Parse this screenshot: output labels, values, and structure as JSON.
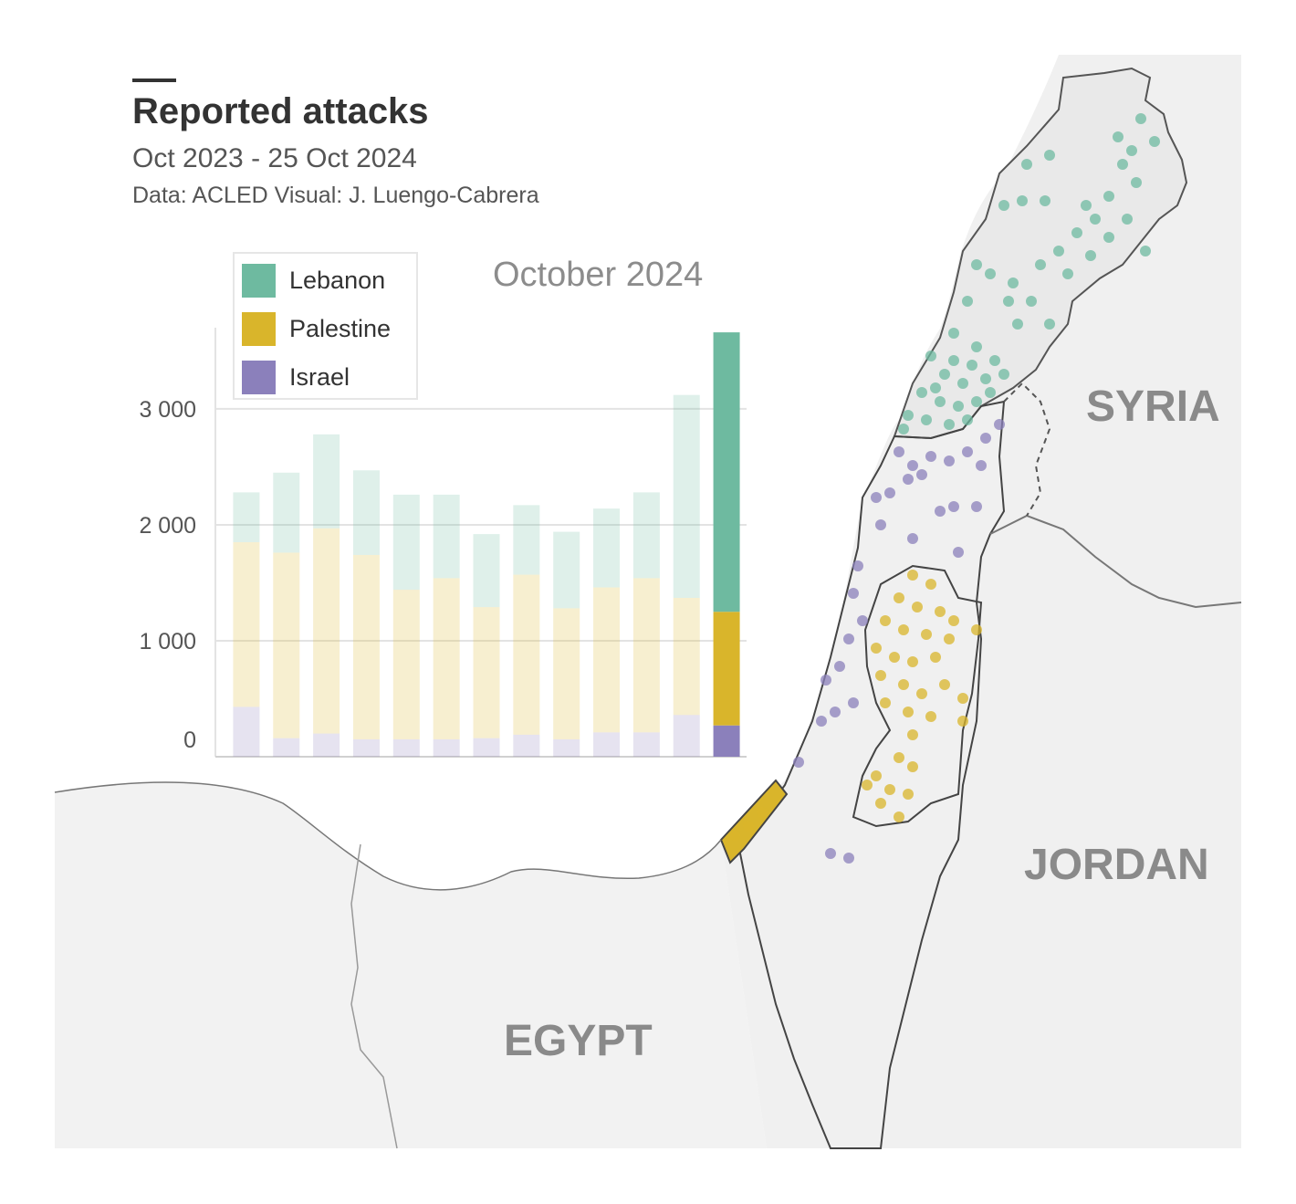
{
  "header": {
    "title": "Reported attacks",
    "subtitle": "Oct 2023 - 25 Oct 2024",
    "credit": "Data: ACLED  Visual: J. Luengo-Cabrera"
  },
  "legend": [
    {
      "label": "Lebanon",
      "color": "#6ebaa0"
    },
    {
      "label": "Palestine",
      "color": "#d9b52b"
    },
    {
      "label": "Israel",
      "color": "#8b80bb"
    }
  ],
  "current_period": "October 2024",
  "map_labels": {
    "syria": "SYRIA",
    "jordan": "JORDAN",
    "egypt": "EGYPT"
  },
  "chart_data": {
    "type": "bar",
    "stacked": true,
    "ylim": [
      0,
      3700
    ],
    "grid": true,
    "legend_position": "top-left",
    "yticks": [
      {
        "value": 0,
        "label": "0"
      },
      {
        "value": 1000,
        "label": "1 000"
      },
      {
        "value": 2000,
        "label": "2 000"
      },
      {
        "value": 3000,
        "label": "3 000"
      }
    ],
    "highlighted_index": 12,
    "series": [
      {
        "name": "Israel",
        "color": "#8b80bb",
        "values": [
          430,
          160,
          200,
          150,
          150,
          150,
          160,
          190,
          150,
          210,
          210,
          360,
          270
        ]
      },
      {
        "name": "Palestine",
        "color": "#d9b52b",
        "values": [
          1420,
          1600,
          1770,
          1590,
          1290,
          1390,
          1130,
          1380,
          1130,
          1250,
          1330,
          1010,
          980
        ]
      },
      {
        "name": "Lebanon",
        "color": "#6ebaa0",
        "values": [
          430,
          690,
          810,
          730,
          820,
          720,
          630,
          600,
          660,
          680,
          740,
          1750,
          2410
        ]
      }
    ]
  }
}
